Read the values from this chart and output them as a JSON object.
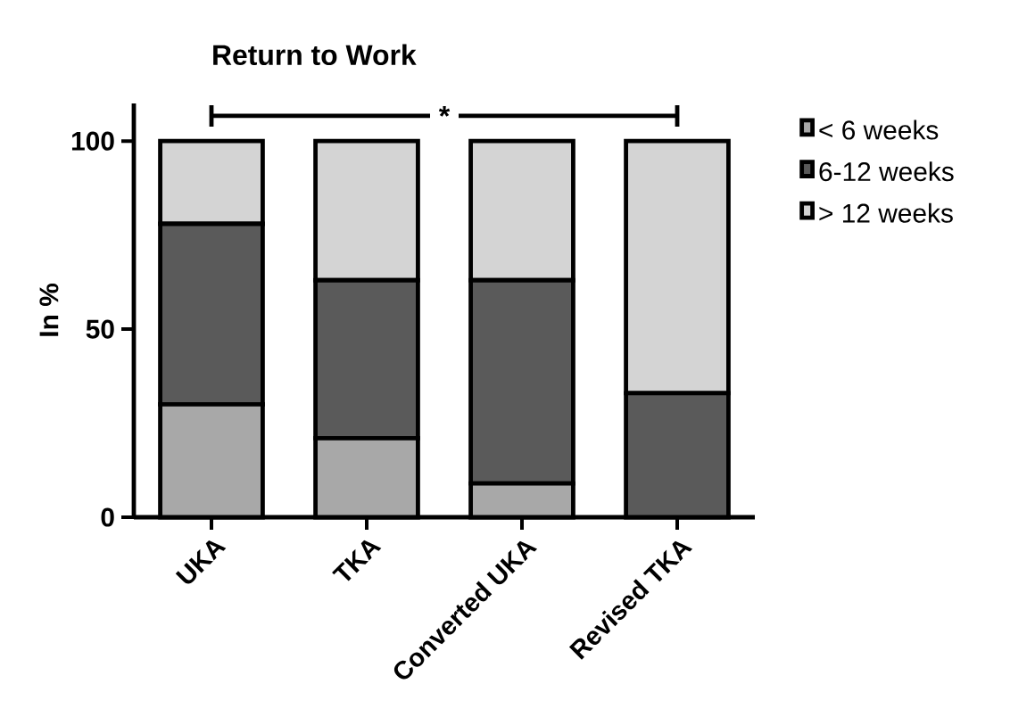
{
  "chart_data": {
    "type": "bar",
    "title": "Return to Work",
    "ylabel": "In %",
    "categories": [
      "UKA",
      "TKA",
      "Converted UKA",
      "Revised TKA"
    ],
    "series": [
      {
        "name": "< 6 weeks",
        "color": "#a8a8a8",
        "values": [
          30,
          21,
          9,
          0
        ]
      },
      {
        "name": "6-12 weeks",
        "color": "#5a5a5a",
        "values": [
          48,
          42,
          54,
          33
        ]
      },
      {
        "name": "> 12 weeks",
        "color": "#d4d4d4",
        "values": [
          22,
          37,
          37,
          67
        ]
      }
    ],
    "stacked": true,
    "ylim": [
      0,
      110
    ],
    "yticks": [
      0,
      50,
      100
    ],
    "legend": "top right",
    "annotations": [
      "*"
    ]
  }
}
